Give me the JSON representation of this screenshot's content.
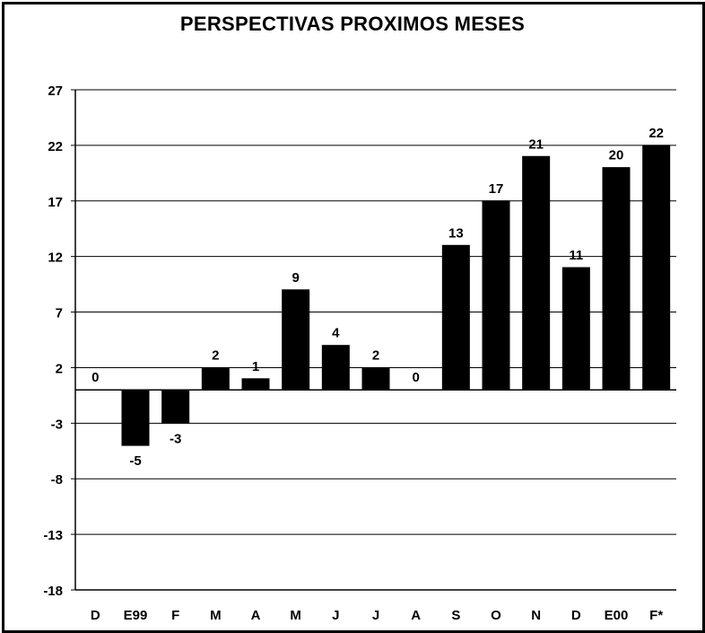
{
  "chart_data": {
    "type": "bar",
    "title": "PERSPECTIVAS PROXIMOS MESES",
    "categories": [
      "D",
      "E99",
      "F",
      "M",
      "A",
      "M",
      "J",
      "J",
      "A",
      "S",
      "O",
      "N",
      "D",
      "E00",
      "F*"
    ],
    "values": [
      0,
      -5,
      -3,
      2,
      1,
      9,
      4,
      2,
      0,
      13,
      17,
      21,
      11,
      20,
      22
    ],
    "data_labels": [
      "0",
      "-5",
      "-3",
      "2",
      "1",
      "9",
      "4",
      "2",
      "0",
      "13",
      "17",
      "21",
      "11",
      "20",
      "22"
    ],
    "ylim": [
      -18,
      27
    ],
    "yticks": [
      27,
      22,
      17,
      12,
      7,
      2,
      -3,
      -8,
      -13,
      -18
    ],
    "ytick_labels": [
      "27",
      "22",
      "17",
      "12",
      "7",
      "2",
      "-3",
      "-8",
      "-13",
      "-18"
    ],
    "xlabel": "",
    "ylabel": "",
    "grid": true,
    "legend": "none",
    "bar_color": "#000000",
    "grid_color": "#000000"
  }
}
